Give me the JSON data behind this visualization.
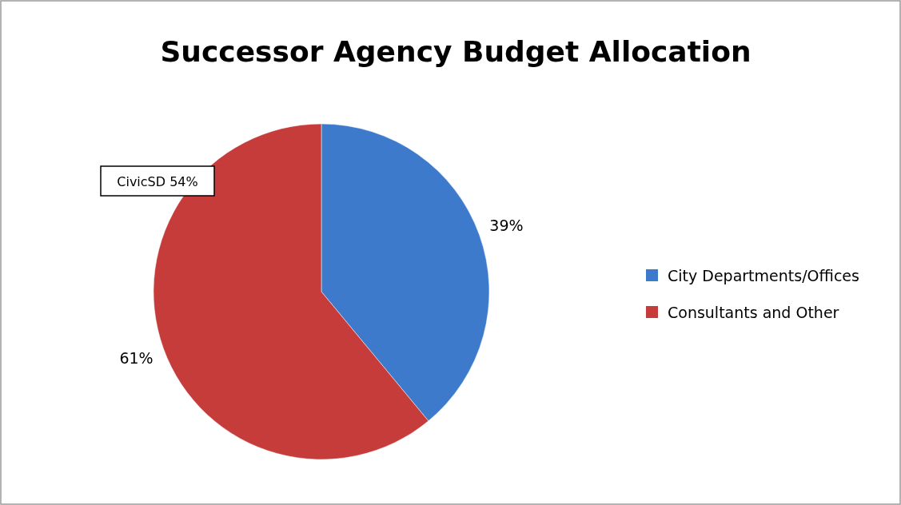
{
  "chart_data": {
    "type": "pie",
    "title": "Successor Agency Budget Allocation",
    "categories": [
      "City Departments/Offices",
      "Consultants and Other"
    ],
    "values": [
      39,
      61
    ],
    "colors": [
      "#3d7acb",
      "#c53c3a"
    ],
    "value_labels": [
      "39%",
      "61%"
    ],
    "legend": "right",
    "annotations": [
      "CivicSD 54%"
    ]
  }
}
